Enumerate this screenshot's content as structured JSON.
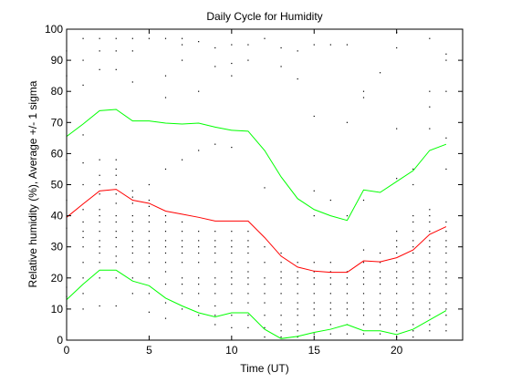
{
  "chart_data": {
    "type": "scatter",
    "title": "Daily Cycle for Humidity",
    "xlabel": "Time (UT)",
    "ylabel": "Relative humidity (%), Average +/- 1 sigma",
    "xlim": [
      0,
      24
    ],
    "ylim": [
      0,
      100
    ],
    "xticks": [
      0,
      5,
      10,
      15,
      20
    ],
    "yticks": [
      0,
      10,
      20,
      30,
      40,
      50,
      60,
      70,
      80,
      90,
      100
    ],
    "grid": false,
    "colors": {
      "average": "#ff0000",
      "sigma": "#00ff00",
      "points": "#000000",
      "axes": "#000000"
    },
    "x": [
      0,
      1,
      2,
      3,
      4,
      5,
      6,
      7,
      8,
      9,
      10,
      11,
      12,
      13,
      14,
      15,
      16,
      17,
      18,
      19,
      20,
      21,
      22,
      23
    ],
    "series": [
      {
        "role": "upper",
        "values": [
          65.5,
          69.5,
          73.8,
          74.2,
          70.5,
          70.5,
          69.8,
          69.5,
          69.8,
          68.5,
          67.5,
          67.2,
          61,
          52.5,
          45.5,
          42,
          40,
          38.5,
          48.3,
          47.5,
          51,
          54.5,
          61,
          63
        ]
      },
      {
        "role": "average",
        "values": [
          39.5,
          43.8,
          48,
          48.5,
          45,
          44,
          41.5,
          40.5,
          39.5,
          38.3,
          38.3,
          38.3,
          33,
          27,
          23.5,
          22.2,
          21.8,
          21.8,
          25.5,
          25.2,
          26.5,
          29,
          34,
          36.5
        ]
      },
      {
        "role": "lower",
        "values": [
          13,
          18,
          22.5,
          22.5,
          19,
          17.5,
          13.5,
          11,
          8.8,
          7.5,
          8.8,
          8.8,
          3.5,
          0.5,
          1.2,
          2.5,
          3.5,
          5,
          3,
          3,
          1.8,
          3.5,
          6.5,
          9.5
        ]
      }
    ],
    "observations": [
      [
        0,
        11
      ],
      [
        0,
        14
      ],
      [
        0,
        17
      ],
      [
        0,
        36
      ],
      [
        0,
        45
      ],
      [
        0,
        58
      ],
      [
        0,
        75
      ],
      [
        0,
        85
      ],
      [
        0,
        93
      ],
      [
        1,
        10
      ],
      [
        1,
        15
      ],
      [
        1,
        20
      ],
      [
        1,
        25
      ],
      [
        1,
        30
      ],
      [
        1,
        33
      ],
      [
        1,
        35
      ],
      [
        1,
        38
      ],
      [
        1,
        42
      ],
      [
        1,
        50
      ],
      [
        1,
        57
      ],
      [
        1,
        66
      ],
      [
        1,
        82
      ],
      [
        1,
        90
      ],
      [
        1,
        97
      ],
      [
        2,
        11
      ],
      [
        2,
        20
      ],
      [
        2,
        25
      ],
      [
        2,
        28
      ],
      [
        2,
        30
      ],
      [
        2,
        32
      ],
      [
        2,
        35
      ],
      [
        2,
        38
      ],
      [
        2,
        40
      ],
      [
        2,
        42
      ],
      [
        2,
        47
      ],
      [
        2,
        50
      ],
      [
        2,
        53
      ],
      [
        2,
        58
      ],
      [
        2,
        87
      ],
      [
        2,
        93
      ],
      [
        2,
        97
      ],
      [
        3,
        11
      ],
      [
        3,
        20
      ],
      [
        3,
        25
      ],
      [
        3,
        27
      ],
      [
        3,
        30
      ],
      [
        3,
        33
      ],
      [
        3,
        35
      ],
      [
        3,
        38
      ],
      [
        3,
        40
      ],
      [
        3,
        44
      ],
      [
        3,
        47
      ],
      [
        3,
        50
      ],
      [
        3,
        53
      ],
      [
        3,
        55
      ],
      [
        3,
        58
      ],
      [
        3,
        87
      ],
      [
        3,
        93
      ],
      [
        3,
        97
      ],
      [
        4,
        15
      ],
      [
        4,
        20
      ],
      [
        4,
        25
      ],
      [
        4,
        28
      ],
      [
        4,
        30
      ],
      [
        4,
        32
      ],
      [
        4,
        35
      ],
      [
        4,
        38
      ],
      [
        4,
        40
      ],
      [
        4,
        44
      ],
      [
        4,
        46
      ],
      [
        4,
        48
      ],
      [
        4,
        83
      ],
      [
        4,
        93
      ],
      [
        4,
        97
      ],
      [
        5,
        9
      ],
      [
        5,
        15
      ],
      [
        5,
        20
      ],
      [
        5,
        25
      ],
      [
        5,
        28
      ],
      [
        5,
        30
      ],
      [
        5,
        32
      ],
      [
        5,
        35
      ],
      [
        5,
        38
      ],
      [
        5,
        40
      ],
      [
        5,
        43
      ],
      [
        5,
        45
      ],
      [
        5,
        50
      ],
      [
        5,
        97
      ],
      [
        6,
        7
      ],
      [
        6,
        12
      ],
      [
        6,
        18
      ],
      [
        6,
        22
      ],
      [
        6,
        25
      ],
      [
        6,
        28
      ],
      [
        6,
        30
      ],
      [
        6,
        32
      ],
      [
        6,
        35
      ],
      [
        6,
        38
      ],
      [
        6,
        40
      ],
      [
        6,
        55
      ],
      [
        6,
        78
      ],
      [
        6,
        85
      ],
      [
        6,
        97
      ],
      [
        7,
        10
      ],
      [
        7,
        15
      ],
      [
        7,
        18
      ],
      [
        7,
        20
      ],
      [
        7,
        25
      ],
      [
        7,
        28
      ],
      [
        7,
        30
      ],
      [
        7,
        32
      ],
      [
        7,
        35
      ],
      [
        7,
        38
      ],
      [
        7,
        58
      ],
      [
        7,
        90
      ],
      [
        7,
        95
      ],
      [
        7,
        97
      ],
      [
        8,
        8
      ],
      [
        8,
        11
      ],
      [
        8,
        15
      ],
      [
        8,
        18
      ],
      [
        8,
        20
      ],
      [
        8,
        25
      ],
      [
        8,
        28
      ],
      [
        8,
        30
      ],
      [
        8,
        32
      ],
      [
        8,
        35
      ],
      [
        8,
        61
      ],
      [
        8,
        80
      ],
      [
        8,
        96
      ],
      [
        9,
        5
      ],
      [
        9,
        8
      ],
      [
        9,
        11
      ],
      [
        9,
        15
      ],
      [
        9,
        18
      ],
      [
        9,
        20
      ],
      [
        9,
        25
      ],
      [
        9,
        28
      ],
      [
        9,
        30
      ],
      [
        9,
        32
      ],
      [
        9,
        35
      ],
      [
        9,
        63
      ],
      [
        9,
        88
      ],
      [
        9,
        94
      ],
      [
        10,
        4
      ],
      [
        10,
        8
      ],
      [
        10,
        12
      ],
      [
        10,
        15
      ],
      [
        10,
        18
      ],
      [
        10,
        20
      ],
      [
        10,
        22
      ],
      [
        10,
        25
      ],
      [
        10,
        28
      ],
      [
        10,
        30
      ],
      [
        10,
        32
      ],
      [
        10,
        35
      ],
      [
        10,
        62
      ],
      [
        10,
        85
      ],
      [
        10,
        89
      ],
      [
        10,
        95
      ],
      [
        11,
        4
      ],
      [
        11,
        8
      ],
      [
        11,
        12
      ],
      [
        11,
        15
      ],
      [
        11,
        18
      ],
      [
        11,
        20
      ],
      [
        11,
        22
      ],
      [
        11,
        25
      ],
      [
        11,
        28
      ],
      [
        11,
        30
      ],
      [
        11,
        32
      ],
      [
        11,
        35
      ],
      [
        11,
        90
      ],
      [
        11,
        95
      ],
      [
        12,
        1
      ],
      [
        12,
        4
      ],
      [
        12,
        8
      ],
      [
        12,
        12
      ],
      [
        12,
        15
      ],
      [
        12,
        18
      ],
      [
        12,
        20
      ],
      [
        12,
        25
      ],
      [
        12,
        30
      ],
      [
        12,
        49
      ],
      [
        12,
        97
      ],
      [
        13,
        1
      ],
      [
        13,
        3
      ],
      [
        13,
        5
      ],
      [
        13,
        8
      ],
      [
        13,
        12
      ],
      [
        13,
        15
      ],
      [
        13,
        18
      ],
      [
        13,
        20
      ],
      [
        13,
        22
      ],
      [
        13,
        25
      ],
      [
        13,
        28
      ],
      [
        13,
        88
      ],
      [
        13,
        94
      ],
      [
        14,
        1
      ],
      [
        14,
        3
      ],
      [
        14,
        5
      ],
      [
        14,
        8
      ],
      [
        14,
        10
      ],
      [
        14,
        12
      ],
      [
        14,
        15
      ],
      [
        14,
        18
      ],
      [
        14,
        20
      ],
      [
        14,
        22
      ],
      [
        14,
        25
      ],
      [
        14,
        84
      ],
      [
        14,
        93
      ],
      [
        15,
        2
      ],
      [
        15,
        5
      ],
      [
        15,
        8
      ],
      [
        15,
        10
      ],
      [
        15,
        12
      ],
      [
        15,
        15
      ],
      [
        15,
        18
      ],
      [
        15,
        20
      ],
      [
        15,
        22
      ],
      [
        15,
        25
      ],
      [
        15,
        40
      ],
      [
        15,
        48
      ],
      [
        15,
        72
      ],
      [
        15,
        95
      ],
      [
        16,
        2
      ],
      [
        16,
        5
      ],
      [
        16,
        8
      ],
      [
        16,
        10
      ],
      [
        16,
        12
      ],
      [
        16,
        15
      ],
      [
        16,
        18
      ],
      [
        16,
        20
      ],
      [
        16,
        22
      ],
      [
        16,
        25
      ],
      [
        16,
        45
      ],
      [
        16,
        95
      ],
      [
        17,
        2
      ],
      [
        17,
        5
      ],
      [
        17,
        8
      ],
      [
        17,
        10
      ],
      [
        17,
        12
      ],
      [
        17,
        15
      ],
      [
        17,
        18
      ],
      [
        17,
        20
      ],
      [
        17,
        22
      ],
      [
        17,
        40
      ],
      [
        17,
        70
      ],
      [
        17,
        95
      ],
      [
        18,
        2
      ],
      [
        18,
        5
      ],
      [
        18,
        8
      ],
      [
        18,
        10
      ],
      [
        18,
        12
      ],
      [
        18,
        15
      ],
      [
        18,
        18
      ],
      [
        18,
        20
      ],
      [
        18,
        22
      ],
      [
        18,
        25
      ],
      [
        18,
        29
      ],
      [
        18,
        45
      ],
      [
        18,
        78
      ],
      [
        18,
        80
      ],
      [
        19,
        2
      ],
      [
        19,
        5
      ],
      [
        19,
        8
      ],
      [
        19,
        10
      ],
      [
        19,
        12
      ],
      [
        19,
        15
      ],
      [
        19,
        18
      ],
      [
        19,
        20
      ],
      [
        19,
        22
      ],
      [
        19,
        25
      ],
      [
        19,
        28
      ],
      [
        19,
        86
      ],
      [
        20,
        1
      ],
      [
        20,
        3
      ],
      [
        20,
        5
      ],
      [
        20,
        8
      ],
      [
        20,
        10
      ],
      [
        20,
        12
      ],
      [
        20,
        15
      ],
      [
        20,
        18
      ],
      [
        20,
        20
      ],
      [
        20,
        22
      ],
      [
        20,
        25
      ],
      [
        20,
        28
      ],
      [
        20,
        30
      ],
      [
        20,
        32
      ],
      [
        20,
        35
      ],
      [
        20,
        52
      ],
      [
        20,
        68
      ],
      [
        20,
        94
      ],
      [
        20,
        99
      ],
      [
        21,
        1
      ],
      [
        21,
        3
      ],
      [
        21,
        5
      ],
      [
        21,
        8
      ],
      [
        21,
        10
      ],
      [
        21,
        12
      ],
      [
        21,
        15
      ],
      [
        21,
        18
      ],
      [
        21,
        20
      ],
      [
        21,
        22
      ],
      [
        21,
        25
      ],
      [
        21,
        28
      ],
      [
        21,
        30
      ],
      [
        21,
        32
      ],
      [
        21,
        35
      ],
      [
        21,
        38
      ],
      [
        21,
        40
      ],
      [
        21,
        50
      ],
      [
        21,
        55
      ],
      [
        22,
        3
      ],
      [
        22,
        5
      ],
      [
        22,
        8
      ],
      [
        22,
        10
      ],
      [
        22,
        12
      ],
      [
        22,
        15
      ],
      [
        22,
        18
      ],
      [
        22,
        20
      ],
      [
        22,
        22
      ],
      [
        22,
        25
      ],
      [
        22,
        28
      ],
      [
        22,
        30
      ],
      [
        22,
        32
      ],
      [
        22,
        35
      ],
      [
        22,
        38
      ],
      [
        22,
        40
      ],
      [
        22,
        42
      ],
      [
        22,
        68
      ],
      [
        22,
        75
      ],
      [
        22,
        80
      ],
      [
        22,
        97
      ],
      [
        23,
        3
      ],
      [
        23,
        5
      ],
      [
        23,
        8
      ],
      [
        23,
        10
      ],
      [
        23,
        12
      ],
      [
        23,
        15
      ],
      [
        23,
        18
      ],
      [
        23,
        20
      ],
      [
        23,
        22
      ],
      [
        23,
        25
      ],
      [
        23,
        28
      ],
      [
        23,
        30
      ],
      [
        23,
        32
      ],
      [
        23,
        35
      ],
      [
        23,
        38
      ],
      [
        23,
        55
      ],
      [
        23,
        65
      ],
      [
        23,
        80
      ],
      [
        23,
        90
      ],
      [
        23,
        92
      ]
    ]
  }
}
